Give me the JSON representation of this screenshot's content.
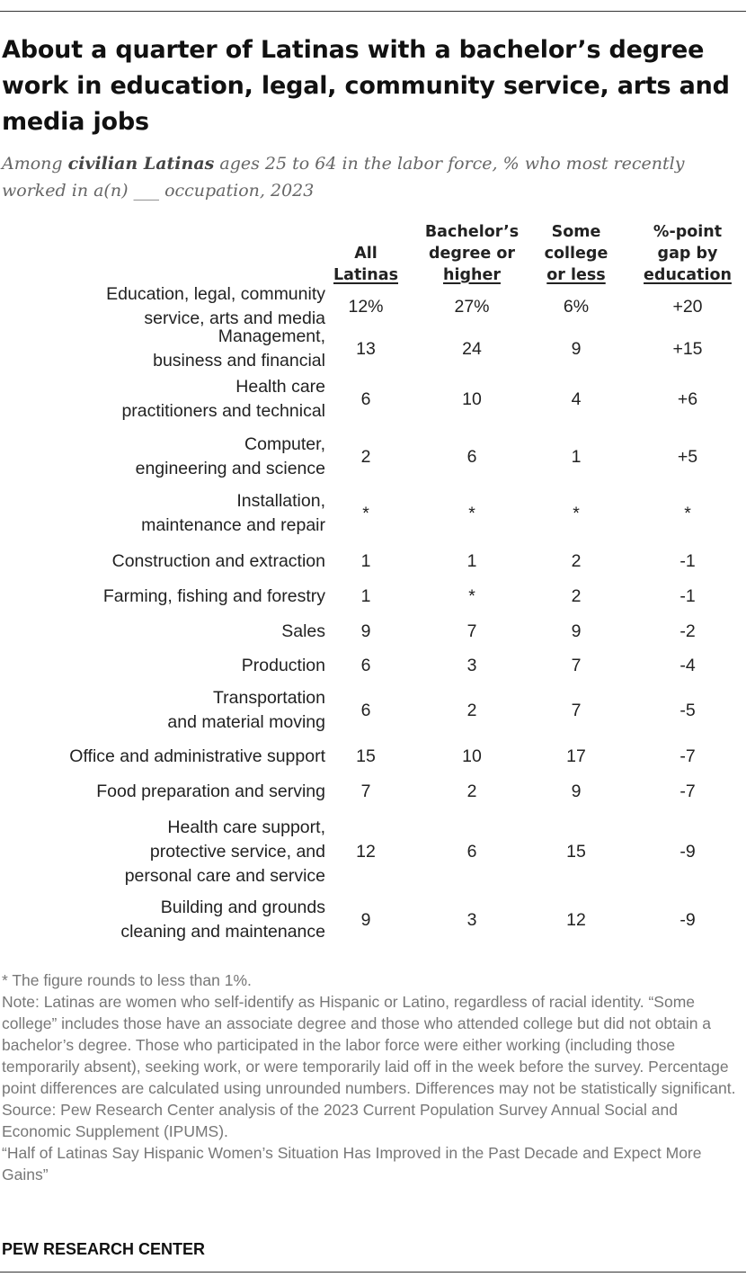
{
  "title": "About a quarter of Latinas with a bachelor’s degree work in education, legal, community service, arts and media jobs",
  "subtitle": {
    "before": "Among ",
    "bold": "civilian Latinas",
    "after": " ages 25 to 64 in the labor force, % who most recently worked in a(n) ___ occupation, 2023"
  },
  "chart_data": {
    "type": "table",
    "columns": [
      {
        "key": "all",
        "label_lines": [
          "All",
          "Latinas"
        ]
      },
      {
        "key": "bach",
        "label_lines": [
          "Bachelor’s",
          "degree or",
          "higher"
        ]
      },
      {
        "key": "some",
        "label_lines": [
          "Some",
          "college",
          "or less"
        ]
      },
      {
        "key": "gap",
        "label_lines": [
          "%-point",
          "gap by",
          "education"
        ]
      }
    ],
    "rows": [
      {
        "label_lines": [
          "Education, legal, community",
          "service, arts and media"
        ],
        "values": [
          "12%",
          "27%",
          "6%",
          "+20"
        ]
      },
      {
        "label_lines": [
          "Management,",
          "business and financial"
        ],
        "values": [
          "13",
          "24",
          "9",
          "+15"
        ]
      },
      {
        "label_lines": [
          "Health care",
          "practitioners and technical"
        ],
        "values": [
          "6",
          "10",
          "4",
          "+6"
        ]
      },
      {
        "label_lines": [
          "Computer,",
          "engineering and science"
        ],
        "values": [
          "2",
          "6",
          "1",
          "+5"
        ]
      },
      {
        "label_lines": [
          "Installation,",
          "maintenance and repair"
        ],
        "values": [
          "*",
          "*",
          "*",
          "*"
        ]
      },
      {
        "label_lines": [
          "Construction and extraction"
        ],
        "values": [
          "1",
          "1",
          "2",
          "-1"
        ]
      },
      {
        "label_lines": [
          "Farming, fishing and forestry"
        ],
        "values": [
          "1",
          "*",
          "2",
          "-1"
        ]
      },
      {
        "label_lines": [
          "Sales"
        ],
        "values": [
          "9",
          "7",
          "9",
          "-2"
        ]
      },
      {
        "label_lines": [
          "Production"
        ],
        "values": [
          "6",
          "3",
          "7",
          "-4"
        ]
      },
      {
        "label_lines": [
          "Transportation",
          "and material moving"
        ],
        "values": [
          "6",
          "2",
          "7",
          "-5"
        ]
      },
      {
        "label_lines": [
          "Office and administrative support"
        ],
        "values": [
          "15",
          "10",
          "17",
          "-7"
        ]
      },
      {
        "label_lines": [
          "Food preparation and serving"
        ],
        "values": [
          "7",
          "2",
          "9",
          "-7"
        ]
      },
      {
        "label_lines": [
          "Health care support,",
          "protective service, and",
          "personal care and service"
        ],
        "values": [
          "12",
          "6",
          "15",
          "-9"
        ]
      },
      {
        "label_lines": [
          "Building and grounds",
          "cleaning and maintenance"
        ],
        "values": [
          "9",
          "3",
          "12",
          "-9"
        ]
      }
    ]
  },
  "footnotes": [
    "* The figure rounds to less than 1%.",
    "Note: Latinas are women who self-identify as Hispanic or Latino, regardless of racial identity. “Some college” includes those have an associate degree and those who attended college but did not obtain a bachelor’s degree. Those who participated in the labor force were either working (including those temporarily absent), seeking work, or were temporarily laid off in the week before the survey. Percentage point differences are calculated using unrounded numbers. Differences may not be statistically significant.",
    "Source: Pew Research Center analysis of the 2023 Current Population Survey Annual Social and Economic Supplement (IPUMS).",
    "“Half of Latinas Say Hispanic Women’s Situation Has Improved in the Past Decade and Expect More Gains”"
  ],
  "brand": "PEW RESEARCH CENTER"
}
